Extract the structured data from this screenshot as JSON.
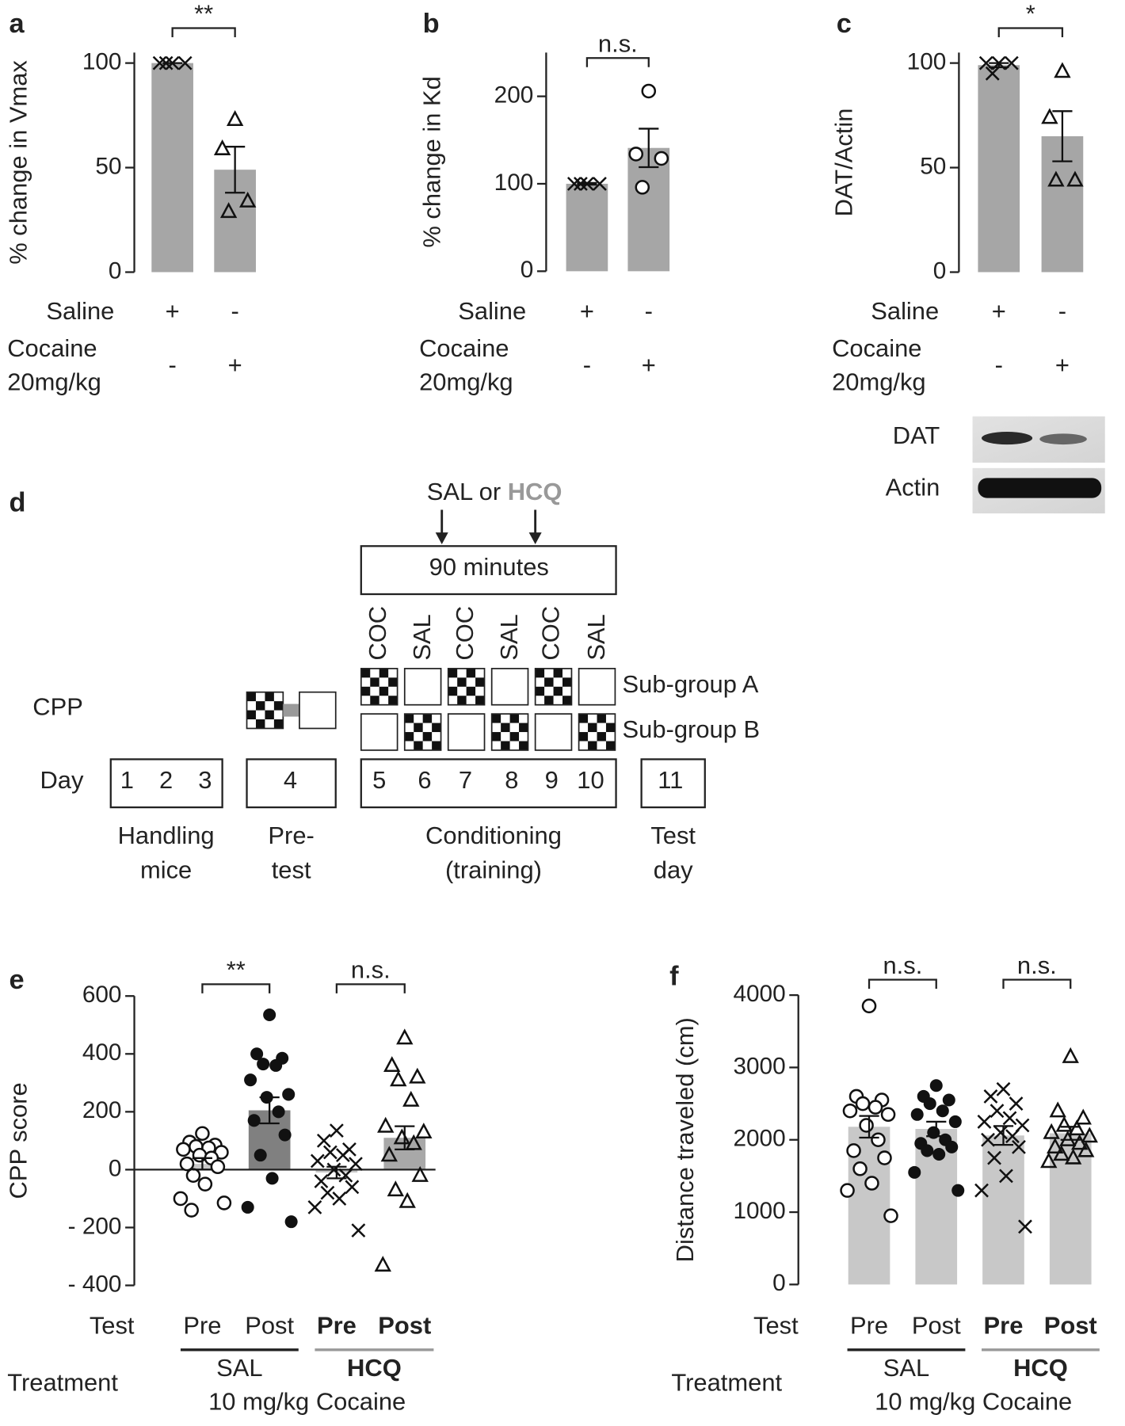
{
  "chart_data": [
    {
      "type": "bar",
      "panel": "a",
      "ylabel": "% change in Vmax",
      "ylim": [
        0,
        105
      ],
      "yticks": [
        0,
        50,
        100
      ],
      "values": [
        100,
        49
      ],
      "errors": [
        0,
        11
      ],
      "points": [
        [
          100,
          100,
          100,
          100
        ],
        [
          73,
          59,
          34,
          29
        ]
      ],
      "markers": [
        "x",
        "triangle"
      ],
      "bar_colors": [
        "#a6a6a6",
        "#a6a6a6"
      ],
      "significance": [
        "**"
      ],
      "conditions": [
        {
          "label": [
            "Saline"
          ],
          "signs": [
            "+",
            "-"
          ]
        },
        {
          "label": [
            "Cocaine",
            "20mg/kg"
          ],
          "signs": [
            "-",
            "+"
          ]
        }
      ]
    },
    {
      "type": "bar",
      "panel": "b",
      "ylabel": "% change in Kd",
      "ylim": [
        0,
        250
      ],
      "yticks": [
        0,
        100,
        200
      ],
      "values": [
        100,
        141
      ],
      "errors": [
        1,
        22
      ],
      "points": [
        [
          100,
          100,
          100,
          100
        ],
        [
          206,
          134,
          129,
          96
        ]
      ],
      "markers": [
        "x",
        "circle"
      ],
      "bar_colors": [
        "#a6a6a6",
        "#a6a6a6"
      ],
      "significance": [
        "n.s."
      ],
      "conditions": [
        {
          "label": [
            "Saline"
          ],
          "signs": [
            "+",
            "-"
          ]
        },
        {
          "label": [
            "Cocaine",
            "20mg/kg"
          ],
          "signs": [
            "-",
            "+"
          ]
        }
      ]
    },
    {
      "type": "bar",
      "panel": "c",
      "ylabel": "DAT/Actin",
      "ylim": [
        0,
        105
      ],
      "yticks": [
        0,
        50,
        100
      ],
      "values": [
        99,
        65
      ],
      "errors": [
        1,
        12
      ],
      "points": [
        [
          100,
          100,
          100,
          95
        ],
        [
          96,
          74,
          44,
          44
        ]
      ],
      "markers": [
        "x",
        "triangle"
      ],
      "bar_colors": [
        "#a6a6a6",
        "#a6a6a6"
      ],
      "significance": [
        "*"
      ],
      "conditions": [
        {
          "label": [
            "Saline"
          ],
          "signs": [
            "+",
            "-"
          ]
        },
        {
          "label": [
            "Cocaine",
            "20mg/kg"
          ],
          "signs": [
            "-",
            "+"
          ]
        }
      ]
    },
    {
      "type": "bar",
      "panel": "e",
      "ylabel": "CPP score",
      "ylim": [
        -400,
        600
      ],
      "yticks": [
        {
          "value": -400,
          "label": "- 400"
        },
        {
          "value": -200,
          "label": "- 200"
        },
        0,
        200,
        400,
        600
      ],
      "zero_line": true,
      "values": [
        20,
        205,
        -10,
        110
      ],
      "errors": [
        20,
        45,
        20,
        40
      ],
      "points": [
        [
          125,
          95,
          85,
          80,
          75,
          70,
          60,
          50,
          40,
          20,
          10,
          -20,
          -50,
          -100,
          -115,
          -140
        ],
        [
          535,
          400,
          385,
          365,
          360,
          310,
          260,
          250,
          200,
          170,
          120,
          50,
          -30,
          -130,
          -180
        ],
        [
          135,
          100,
          70,
          60,
          50,
          30,
          20,
          0,
          -20,
          -40,
          -60,
          -80,
          -100,
          -130,
          -210
        ],
        [
          455,
          360,
          320,
          310,
          240,
          150,
          130,
          110,
          90,
          50,
          -20,
          -70,
          -110,
          -330
        ]
      ],
      "markers": [
        "circle",
        "dot",
        "x",
        "triangle"
      ],
      "bar_colors": [
        "#c8c8c8",
        "#808080",
        "#c8c8c8",
        "#a8a8a8"
      ],
      "significance": [
        "**",
        "n.s."
      ],
      "categories": [
        "Pre",
        "Post",
        "Pre",
        "Post"
      ],
      "category_colors": [
        "#222222",
        "#222222",
        "#999999",
        "#999999"
      ],
      "test_label": "Test",
      "treatment_label": "Treatment",
      "groups": [
        {
          "label": "SAL",
          "color": "#222222"
        },
        {
          "label": "HCQ",
          "color": "#999999"
        }
      ],
      "dose_label": "10 mg/kg Cocaine"
    },
    {
      "type": "bar",
      "panel": "f",
      "ylabel": "Distance traveled (cm)",
      "ylim": [
        0,
        4000
      ],
      "yticks": [
        0,
        1000,
        2000,
        3000,
        4000
      ],
      "values": [
        2180,
        2150,
        2060,
        2090
      ],
      "errors": [
        150,
        100,
        130,
        90
      ],
      "points": [
        [
          3850,
          2600,
          2550,
          2500,
          2450,
          2400,
          2350,
          2200,
          2000,
          1850,
          1750,
          1600,
          1400,
          1300,
          950
        ],
        [
          2750,
          2600,
          2550,
          2500,
          2400,
          2350,
          2250,
          2100,
          2000,
          1950,
          1900,
          1850,
          1800,
          1550,
          1300
        ],
        [
          2700,
          2600,
          2500,
          2400,
          2300,
          2250,
          2200,
          2100,
          2050,
          2000,
          1900,
          1750,
          1500,
          1300,
          800
        ],
        [
          3150,
          2400,
          2300,
          2200,
          2150,
          2100,
          2050,
          2000,
          1950,
          1900,
          1850,
          1800,
          1750,
          1700
        ]
      ],
      "markers": [
        "circle",
        "dot",
        "x",
        "triangle"
      ],
      "bar_colors": [
        "#c8c8c8",
        "#c8c8c8",
        "#c8c8c8",
        "#c8c8c8"
      ],
      "significance": [
        "n.s.",
        "n.s."
      ],
      "categories": [
        "Pre",
        "Post",
        "Pre",
        "Post"
      ],
      "category_colors": [
        "#222222",
        "#222222",
        "#999999",
        "#999999"
      ],
      "test_label": "Test",
      "treatment_label": "Treatment",
      "groups": [
        {
          "label": "SAL",
          "color": "#222222"
        },
        {
          "label": "HCQ",
          "color": "#999999"
        }
      ],
      "dose_label": "10 mg/kg Cocaine"
    }
  ],
  "blot": {
    "labels": [
      "DAT",
      "Actin"
    ]
  },
  "diagram": {
    "panel": "d",
    "intervention": [
      "SAL or",
      "HCQ"
    ],
    "duration": "90 minutes",
    "conditions": [
      "COC",
      "SAL",
      "COC",
      "SAL",
      "COC",
      "SAL"
    ],
    "subgroups": [
      "Sub-group A",
      "Sub-group B"
    ],
    "row_label": "CPP",
    "day_label": "Day",
    "days": [
      [
        "1",
        "2",
        "3"
      ],
      [
        "4"
      ],
      [
        "5",
        "6",
        "7",
        "8",
        "9",
        "10"
      ],
      [
        "11"
      ]
    ],
    "phases": [
      [
        "Handling",
        "mice"
      ],
      [
        "Pre-",
        "test"
      ],
      [
        "Conditioning",
        "(training)"
      ],
      [
        "Test",
        "day"
      ]
    ]
  }
}
